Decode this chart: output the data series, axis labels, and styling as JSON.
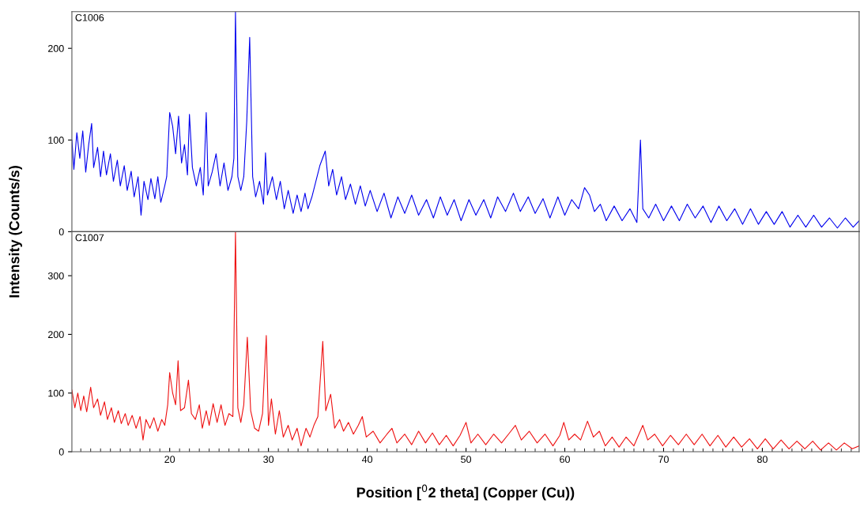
{
  "chart_data": [
    {
      "type": "line",
      "ylabel": "Intensity (Counts/s)",
      "xlim": [
        10.1,
        89.8
      ],
      "ylim": [
        0,
        240
      ],
      "yticks": [
        0,
        100,
        200
      ],
      "xticks": [
        20,
        30,
        40,
        50,
        60,
        70,
        80
      ],
      "tick_labels": "y",
      "grid": false,
      "legend": false,
      "marker": "none",
      "line_style": "solid",
      "series": [
        {
          "name": "C1006",
          "color": "#0000ee",
          "x": [
            10.1,
            10.3,
            10.6,
            10.9,
            11.2,
            11.5,
            11.8,
            12.1,
            12.3,
            12.7,
            13,
            13.3,
            13.6,
            14,
            14.3,
            14.7,
            15,
            15.4,
            15.7,
            16.1,
            16.4,
            16.8,
            17.1,
            17.4,
            17.8,
            18.1,
            18.5,
            18.8,
            19.1,
            19.5,
            19.7,
            20.0,
            20.3,
            20.6,
            20.9,
            21.2,
            21.5,
            21.8,
            22.0,
            22.3,
            22.7,
            23.1,
            23.4,
            23.7,
            23.9,
            24.3,
            24.7,
            25.1,
            25.5,
            25.9,
            26.3,
            26.5,
            26.66,
            26.9,
            27.2,
            27.5,
            27.8,
            28.1,
            28.4,
            28.7,
            29.1,
            29.5,
            29.7,
            29.9,
            30.4,
            30.8,
            31.2,
            31.6,
            32,
            32.5,
            32.9,
            33.3,
            33.7,
            34,
            34.4,
            34.8,
            35.2,
            35.75,
            36.1,
            36.5,
            36.9,
            37.4,
            37.8,
            38.3,
            38.8,
            39.3,
            39.8,
            40.3,
            41,
            41.7,
            42.4,
            43.1,
            43.8,
            44.5,
            45.2,
            46,
            46.7,
            47.4,
            48.1,
            48.8,
            49.5,
            50.3,
            51,
            51.8,
            52.5,
            53.2,
            54,
            54.8,
            55.5,
            56.3,
            57,
            57.8,
            58.5,
            59.3,
            60,
            60.7,
            61.4,
            62,
            62.5,
            63,
            63.6,
            64.2,
            65,
            65.8,
            66.6,
            67.3,
            67.66,
            67.9,
            68.5,
            69.2,
            70,
            70.8,
            71.6,
            72.4,
            73.2,
            74,
            74.8,
            75.6,
            76.4,
            77.2,
            78,
            78.8,
            79.6,
            80.4,
            81.2,
            82,
            82.8,
            83.6,
            84.4,
            85.2,
            86,
            86.8,
            87.6,
            88.4,
            89.2,
            89.8
          ],
          "values": [
            100,
            68,
            108,
            80,
            110,
            65,
            95,
            118,
            70,
            92,
            60,
            88,
            62,
            85,
            55,
            78,
            50,
            72,
            45,
            66,
            38,
            60,
            18,
            55,
            35,
            58,
            36,
            60,
            32,
            50,
            60,
            130,
            115,
            85,
            126,
            75,
            95,
            62,
            128,
            70,
            50,
            70,
            40,
            130,
            50,
            65,
            85,
            50,
            75,
            45,
            60,
            80,
            240,
            60,
            45,
            60,
            120,
            212,
            60,
            38,
            55,
            30,
            86,
            40,
            60,
            35,
            55,
            25,
            45,
            20,
            40,
            22,
            42,
            25,
            38,
            55,
            72,
            88,
            50,
            68,
            40,
            60,
            35,
            52,
            30,
            50,
            28,
            45,
            22,
            42,
            15,
            38,
            20,
            40,
            18,
            35,
            15,
            38,
            18,
            35,
            12,
            35,
            18,
            35,
            15,
            38,
            22,
            42,
            22,
            38,
            20,
            36,
            15,
            38,
            18,
            35,
            25,
            48,
            40,
            22,
            30,
            12,
            28,
            12,
            25,
            10,
            100,
            25,
            15,
            30,
            12,
            28,
            12,
            30,
            15,
            28,
            10,
            28,
            12,
            25,
            8,
            25,
            8,
            22,
            8,
            22,
            5,
            18,
            5,
            18,
            5,
            15,
            4,
            15,
            5,
            12
          ]
        }
      ]
    },
    {
      "type": "line",
      "xlabel": "Position [$^{0}$2 theta] (Copper (Cu))",
      "xlim": [
        10.1,
        89.8
      ],
      "ylim": [
        0,
        375
      ],
      "yticks": [
        0,
        100,
        200,
        300
      ],
      "xticks": [
        20,
        30,
        40,
        50,
        60,
        70,
        80
      ],
      "grid": false,
      "legend": false,
      "marker": "none",
      "line_style": "solid",
      "series": [
        {
          "name": "C1007",
          "color": "#ee1111",
          "x": [
            10.1,
            10.4,
            10.7,
            11,
            11.3,
            11.6,
            12,
            12.3,
            12.7,
            13,
            13.4,
            13.7,
            14.1,
            14.4,
            14.8,
            15.1,
            15.5,
            15.8,
            16.2,
            16.6,
            17,
            17.3,
            17.6,
            18,
            18.4,
            18.8,
            19.2,
            19.5,
            19.8,
            20,
            20.3,
            20.6,
            20.85,
            21.1,
            21.5,
            21.9,
            22.2,
            22.6,
            23,
            23.3,
            23.7,
            24,
            24.4,
            24.8,
            25.2,
            25.6,
            26,
            26.4,
            26.66,
            26.9,
            27.2,
            27.5,
            27.86,
            28.2,
            28.6,
            29,
            29.4,
            29.78,
            30.0,
            30.3,
            30.7,
            31.1,
            31.5,
            32,
            32.4,
            32.9,
            33.3,
            33.8,
            34.2,
            34.6,
            35,
            35.5,
            35.8,
            36.3,
            36.7,
            37.2,
            37.6,
            38.1,
            38.6,
            39.1,
            39.5,
            39.9,
            40.6,
            41.3,
            42,
            42.5,
            43,
            43.8,
            44.5,
            45.2,
            45.9,
            46.6,
            47.3,
            48,
            48.7,
            49.4,
            50,
            50.5,
            51.2,
            52,
            52.8,
            53.6,
            54.4,
            55,
            55.6,
            56.4,
            57.2,
            58,
            58.8,
            59.5,
            59.9,
            60.4,
            61,
            61.6,
            62.3,
            62.9,
            63.5,
            64.1,
            64.8,
            65.5,
            66.2,
            67,
            67.9,
            68.4,
            69.1,
            69.9,
            70.7,
            71.5,
            72.3,
            73.1,
            73.9,
            74.7,
            75.5,
            76.3,
            77.1,
            77.9,
            78.7,
            79.5,
            80.3,
            81.1,
            81.9,
            82.7,
            83.5,
            84.3,
            85.1,
            85.9,
            86.7,
            87.5,
            88.3,
            89.1,
            89.8
          ],
          "values": [
            105,
            75,
            100,
            70,
            95,
            68,
            110,
            75,
            90,
            62,
            85,
            55,
            75,
            50,
            70,
            48,
            65,
            45,
            62,
            40,
            60,
            20,
            55,
            40,
            58,
            35,
            55,
            45,
            80,
            135,
            100,
            80,
            155,
            70,
            75,
            122,
            65,
            55,
            80,
            40,
            70,
            45,
            82,
            50,
            80,
            45,
            65,
            60,
            375,
            75,
            50,
            80,
            195,
            70,
            40,
            35,
            65,
            198,
            45,
            90,
            30,
            70,
            25,
            45,
            20,
            40,
            10,
            40,
            25,
            45,
            60,
            188,
            70,
            98,
            40,
            55,
            35,
            50,
            30,
            45,
            60,
            25,
            35,
            15,
            30,
            40,
            15,
            30,
            12,
            35,
            15,
            32,
            12,
            28,
            10,
            28,
            50,
            15,
            30,
            12,
            30,
            15,
            32,
            45,
            20,
            35,
            15,
            30,
            10,
            28,
            50,
            20,
            30,
            20,
            52,
            25,
            35,
            10,
            25,
            8,
            25,
            10,
            45,
            20,
            30,
            10,
            28,
            12,
            30,
            12,
            30,
            10,
            28,
            8,
            25,
            8,
            22,
            5,
            22,
            5,
            20,
            5,
            18,
            5,
            18,
            3,
            15,
            3,
            15,
            5,
            10
          ]
        }
      ]
    }
  ]
}
